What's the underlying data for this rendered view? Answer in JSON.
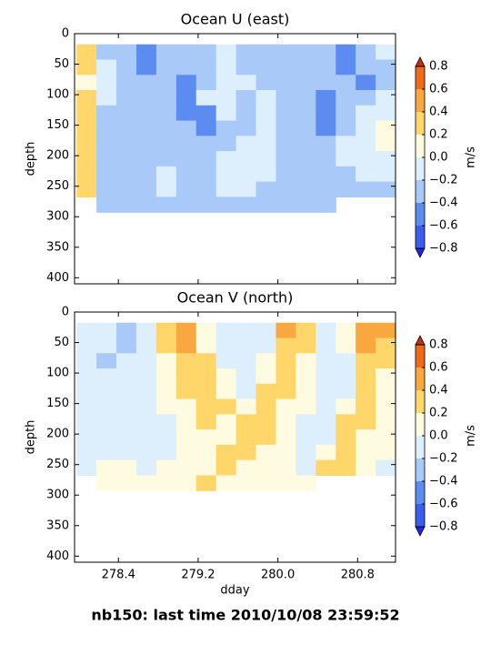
{
  "suptitle": "nb150: last time 2010/10/08 23:59:52",
  "chart_data": [
    {
      "type": "contour",
      "title": "Ocean U (east)",
      "ylabel": "depth",
      "xlim": [
        277.96,
        281.18
      ],
      "ylim": [
        0,
        410
      ],
      "invert_y": true,
      "xticks": [
        278.4,
        279.2,
        {
          "value": 280.0,
          "label": "280.0"
        },
        280.8
      ],
      "show_xticklabels": false,
      "yticks": [
        0,
        50,
        100,
        150,
        200,
        250,
        300,
        350,
        400
      ],
      "x": [
        278.08,
        278.28,
        278.48,
        278.68,
        278.88,
        279.08,
        279.28,
        279.48,
        279.68,
        279.88,
        280.08,
        280.28,
        280.48,
        280.68,
        280.88,
        281.08
      ],
      "y": [
        30,
        55,
        80,
        105,
        130,
        155,
        180,
        205,
        230,
        255,
        280
      ],
      "z": [
        [
          0.25,
          -0.3,
          -0.3,
          -0.5,
          -0.3,
          -0.3,
          -0.3,
          -0.1,
          -0.3,
          -0.3,
          -0.3,
          -0.3,
          -0.3,
          -0.5,
          -0.3,
          -0.1
        ],
        [
          0.25,
          -0.1,
          -0.3,
          -0.5,
          -0.3,
          -0.3,
          -0.3,
          -0.1,
          -0.3,
          -0.3,
          -0.3,
          -0.3,
          -0.3,
          -0.5,
          -0.3,
          -0.3
        ],
        [
          0.1,
          -0.1,
          -0.3,
          -0.3,
          -0.3,
          -0.5,
          -0.3,
          -0.1,
          -0.1,
          -0.3,
          -0.3,
          -0.3,
          -0.3,
          -0.3,
          -0.5,
          -0.3
        ],
        [
          0.25,
          -0.1,
          -0.3,
          -0.3,
          -0.3,
          -0.5,
          -0.1,
          -0.1,
          -0.3,
          -0.1,
          -0.3,
          -0.3,
          -0.5,
          -0.3,
          -0.3,
          -0.1
        ],
        [
          0.25,
          -0.3,
          -0.3,
          -0.3,
          -0.3,
          -0.5,
          -0.5,
          -0.1,
          -0.3,
          -0.1,
          -0.3,
          -0.3,
          -0.5,
          -0.3,
          -0.1,
          -0.1
        ],
        [
          0.25,
          -0.3,
          -0.3,
          -0.3,
          -0.3,
          -0.3,
          -0.5,
          -0.3,
          -0.3,
          -0.1,
          -0.3,
          -0.3,
          -0.5,
          -0.3,
          -0.1,
          0.1
        ],
        [
          0.25,
          -0.3,
          -0.3,
          -0.3,
          -0.3,
          -0.3,
          -0.3,
          -0.3,
          -0.1,
          -0.1,
          -0.3,
          -0.3,
          -0.3,
          -0.1,
          -0.1,
          0.1
        ],
        [
          0.25,
          -0.3,
          -0.3,
          -0.3,
          -0.3,
          -0.3,
          -0.3,
          -0.1,
          -0.1,
          -0.1,
          -0.3,
          -0.3,
          -0.3,
          -0.1,
          -0.1,
          -0.1
        ],
        [
          0.25,
          -0.3,
          -0.3,
          -0.3,
          -0.1,
          -0.3,
          -0.3,
          -0.1,
          -0.1,
          -0.1,
          -0.3,
          -0.3,
          -0.3,
          -0.3,
          -0.1,
          -0.1
        ],
        [
          0.25,
          -0.3,
          -0.3,
          -0.3,
          -0.1,
          -0.3,
          -0.3,
          -0.1,
          -0.1,
          -0.3,
          -0.3,
          -0.3,
          -0.3,
          -0.3,
          -0.3,
          -0.3
        ],
        [
          null,
          -0.3,
          -0.3,
          -0.3,
          -0.3,
          -0.3,
          -0.3,
          -0.3,
          -0.3,
          -0.3,
          -0.3,
          -0.3,
          -0.3,
          null,
          null,
          null
        ]
      ],
      "colorbar": {
        "label": "m/s",
        "levels": [
          -0.8,
          -0.6,
          -0.4,
          -0.2,
          0,
          0.2,
          0.4,
          0.6,
          0.8
        ],
        "colors": [
          "#3d5cf0",
          "#5c8cf0",
          "#a9c9f8",
          "#ddeffc",
          "#fffbe0",
          "#ffd66a",
          "#f9a840",
          "#f06a1c"
        ],
        "under_color": "#2424e6",
        "over_color": "#c8300a",
        "ticks": [
          {
            "value": 0.8,
            "label": "0.8"
          },
          {
            "value": 0.6,
            "label": "0.6"
          },
          {
            "value": 0.4,
            "label": "0.4"
          },
          {
            "value": 0.2,
            "label": "0.2"
          },
          {
            "value": 0,
            "label": "0.0"
          },
          {
            "value": -0.2,
            "label": "−0.2"
          },
          {
            "value": -0.4,
            "label": "−0.4"
          },
          {
            "value": -0.6,
            "label": "−0.6"
          },
          {
            "value": -0.8,
            "label": "−0.8"
          }
        ]
      }
    },
    {
      "type": "contour",
      "title": "Ocean V (north)",
      "ylabel": "depth",
      "xlabel": "dday",
      "xlim": [
        277.96,
        281.18
      ],
      "ylim": [
        0,
        410
      ],
      "invert_y": true,
      "xticks": [
        278.4,
        279.2,
        {
          "value": 280.0,
          "label": "280.0"
        },
        280.8
      ],
      "show_xticklabels": true,
      "yticks": [
        0,
        50,
        100,
        150,
        200,
        250,
        300,
        350,
        400
      ],
      "x": [
        278.08,
        278.28,
        278.48,
        278.68,
        278.88,
        279.08,
        279.28,
        279.48,
        279.68,
        279.88,
        280.08,
        280.28,
        280.48,
        280.68,
        280.88,
        281.08
      ],
      "y": [
        30,
        55,
        80,
        105,
        130,
        155,
        180,
        205,
        230,
        255,
        280
      ],
      "z": [
        [
          -0.1,
          -0.1,
          -0.3,
          -0.1,
          0.3,
          0.5,
          0.1,
          -0.1,
          -0.1,
          -0.1,
          0.5,
          0.3,
          -0.1,
          0.1,
          0.5,
          0.5
        ],
        [
          -0.1,
          -0.1,
          -0.3,
          -0.1,
          0.3,
          0.5,
          0.1,
          -0.1,
          -0.1,
          -0.1,
          0.3,
          0.3,
          -0.1,
          0.1,
          0.5,
          0.3
        ],
        [
          -0.1,
          -0.3,
          -0.1,
          -0.1,
          0.1,
          0.3,
          0.3,
          -0.1,
          -0.1,
          0.1,
          0.3,
          0.1,
          -0.1,
          -0.1,
          0.3,
          0.3
        ],
        [
          -0.1,
          -0.1,
          -0.1,
          -0.1,
          0.1,
          0.3,
          0.3,
          0.1,
          -0.1,
          0.1,
          0.3,
          0.1,
          -0.1,
          -0.1,
          0.3,
          0.1
        ],
        [
          -0.1,
          -0.1,
          -0.1,
          -0.1,
          0.1,
          0.3,
          0.3,
          0.1,
          -0.1,
          0.3,
          0.3,
          0.1,
          -0.1,
          -0.1,
          0.3,
          0.1
        ],
        [
          -0.1,
          -0.1,
          -0.1,
          -0.1,
          0.1,
          0.1,
          0.3,
          0.3,
          0.1,
          0.3,
          0.1,
          0.1,
          -0.1,
          0.1,
          0.3,
          0.1
        ],
        [
          -0.1,
          -0.1,
          -0.1,
          -0.1,
          -0.1,
          0.1,
          0.3,
          0.1,
          0.3,
          0.3,
          0.1,
          -0.1,
          -0.1,
          0.3,
          0.3,
          0.1
        ],
        [
          -0.1,
          -0.1,
          -0.1,
          -0.1,
          -0.1,
          0.1,
          0.1,
          0.1,
          0.3,
          0.3,
          0.1,
          -0.1,
          -0.1,
          0.3,
          0.1,
          0.1
        ],
        [
          -0.1,
          -0.1,
          -0.1,
          -0.1,
          -0.1,
          0.1,
          0.1,
          0.3,
          0.3,
          0.1,
          0.1,
          -0.1,
          0.1,
          0.3,
          0.1,
          0.1
        ],
        [
          -0.1,
          0.1,
          0.1,
          -0.1,
          0.1,
          0.1,
          0.1,
          0.3,
          0.1,
          0.1,
          0.1,
          -0.1,
          0.3,
          0.3,
          0.1,
          -0.1
        ],
        [
          null,
          0.1,
          0.1,
          0.1,
          0.1,
          0.1,
          0.3,
          0.1,
          0.1,
          0.1,
          0.1,
          0.1,
          null,
          null,
          null,
          null
        ]
      ],
      "colorbar": {
        "label": "m/s",
        "levels": [
          -0.8,
          -0.6,
          -0.4,
          -0.2,
          0,
          0.2,
          0.4,
          0.6,
          0.8
        ],
        "colors": [
          "#3d5cf0",
          "#5c8cf0",
          "#a9c9f8",
          "#ddeffc",
          "#fffbe0",
          "#ffd66a",
          "#f9a840",
          "#f06a1c"
        ],
        "under_color": "#2424e6",
        "over_color": "#c8300a",
        "ticks": [
          {
            "value": 0.8,
            "label": "0.8"
          },
          {
            "value": 0.6,
            "label": "0.6"
          },
          {
            "value": 0.4,
            "label": "0.4"
          },
          {
            "value": 0.2,
            "label": "0.2"
          },
          {
            "value": 0,
            "label": "0.0"
          },
          {
            "value": -0.2,
            "label": "−0.2"
          },
          {
            "value": -0.4,
            "label": "−0.4"
          },
          {
            "value": -0.6,
            "label": "−0.6"
          },
          {
            "value": -0.8,
            "label": "−0.8"
          }
        ]
      }
    }
  ]
}
